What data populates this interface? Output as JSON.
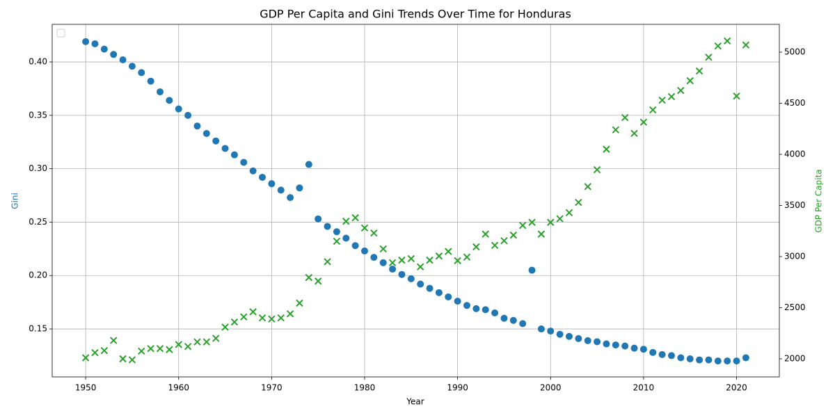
{
  "chart_data": {
    "type": "scatter",
    "title": "GDP Per Capita and Gini Trends Over Time for Honduras",
    "x_label": "Year",
    "y_label": "Gini",
    "y2_label": "GDP Per Capita",
    "x": [
      1950,
      1951,
      1952,
      1953,
      1954,
      1955,
      1956,
      1957,
      1958,
      1959,
      1960,
      1961,
      1962,
      1963,
      1964,
      1965,
      1966,
      1967,
      1968,
      1969,
      1970,
      1971,
      1972,
      1973,
      1974,
      1975,
      1976,
      1977,
      1978,
      1979,
      1980,
      1981,
      1982,
      1983,
      1984,
      1985,
      1986,
      1987,
      1988,
      1989,
      1990,
      1991,
      1992,
      1993,
      1994,
      1995,
      1996,
      1997,
      1998,
      1999,
      2000,
      2001,
      2002,
      2003,
      2004,
      2005,
      2006,
      2007,
      2008,
      2009,
      2010,
      2011,
      2012,
      2013,
      2014,
      2015,
      2016,
      2017,
      2018,
      2019,
      2020,
      2021
    ],
    "series": [
      {
        "color": "#1f77b4",
        "marker": "circle",
        "axis": "y",
        "values": [
          0.419,
          0.417,
          0.412,
          0.407,
          0.402,
          0.396,
          0.39,
          0.382,
          0.372,
          0.364,
          0.356,
          0.35,
          0.34,
          0.333,
          0.326,
          0.319,
          0.313,
          0.306,
          0.298,
          0.292,
          0.286,
          0.28,
          0.273,
          0.282,
          0.304,
          0.253,
          0.246,
          0.241,
          0.235,
          0.228,
          0.223,
          0.217,
          0.212,
          0.206,
          0.201,
          0.197,
          0.192,
          0.188,
          0.184,
          0.18,
          0.176,
          0.172,
          0.169,
          0.168,
          0.165,
          0.16,
          0.158,
          0.155,
          0.205,
          0.15,
          0.148,
          0.145,
          0.143,
          0.141,
          0.139,
          0.138,
          0.136,
          0.135,
          0.134,
          0.132,
          0.131,
          0.128,
          0.126,
          0.125,
          0.123,
          0.122,
          0.121,
          0.121,
          0.12,
          0.12,
          0.12,
          0.123
        ]
      },
      {
        "color": "#2ca02c",
        "marker": "x",
        "axis": "y2",
        "values": [
          2010,
          2060,
          2080,
          2180,
          2000,
          1990,
          2075,
          2100,
          2100,
          2090,
          2140,
          2120,
          2165,
          2165,
          2200,
          2310,
          2360,
          2410,
          2460,
          2400,
          2390,
          2400,
          2440,
          2545,
          2795,
          2760,
          2950,
          3150,
          3345,
          3380,
          3280,
          3230,
          3075,
          2940,
          2965,
          2980,
          2900,
          2965,
          3005,
          3050,
          2960,
          2995,
          3095,
          3220,
          3110,
          3155,
          3210,
          3305,
          3335,
          3220,
          3335,
          3370,
          3430,
          3530,
          3685,
          3850,
          4050,
          4240,
          4360,
          4205,
          4315,
          4435,
          4530,
          4565,
          4625,
          4720,
          4815,
          4950,
          5060,
          5110,
          4570,
          5070
        ]
      }
    ],
    "xlim": [
      1946.4,
      2024.6
    ],
    "xticks": [
      1950,
      1960,
      1970,
      1980,
      1990,
      2000,
      2010,
      2020
    ],
    "ylim": [
      0.1051,
      0.4352
    ],
    "yticks": [
      0.15,
      {
        "value": 0.2,
        "label": "0.20"
      },
      0.25,
      {
        "value": 0.3,
        "label": "0.30"
      },
      0.35,
      {
        "value": 0.4,
        "label": "0.40"
      }
    ],
    "y2lim": [
      1823,
      5272
    ],
    "y2ticks": [
      2000,
      2500,
      3000,
      3500,
      4000,
      4500,
      5000
    ],
    "grid": true,
    "legend": "upper left"
  }
}
